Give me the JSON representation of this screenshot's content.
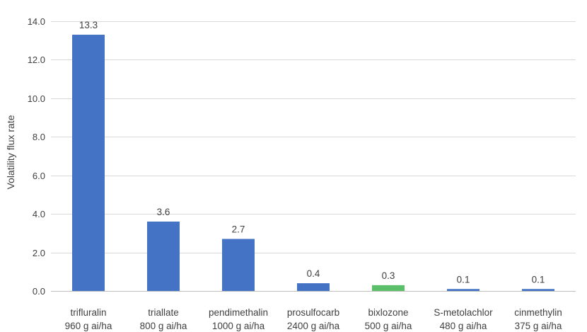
{
  "chart_data": {
    "type": "bar",
    "title": "",
    "xlabel": "",
    "ylabel": "Volatility flux rate",
    "ylim": [
      0,
      14
    ],
    "yticks": [
      "0.0",
      "2.0",
      "4.0",
      "6.0",
      "8.0",
      "10.0",
      "12.0",
      "14.0"
    ],
    "grid": true,
    "categories": [
      {
        "name": "trifluralin",
        "rate": "960 g ai/ha"
      },
      {
        "name": "triallate",
        "rate": "800 g ai/ha"
      },
      {
        "name": "pendimethalin",
        "rate": "1000 g ai/ha"
      },
      {
        "name": "prosulfocarb",
        "rate": "2400 g ai/ha"
      },
      {
        "name": "bixlozone",
        "rate": "500 g ai/ha"
      },
      {
        "name": "S-metolachlor",
        "rate": "480 g ai/ha"
      },
      {
        "name": "cinmethylin",
        "rate": "375 g ai/ha"
      }
    ],
    "values": [
      13.3,
      3.6,
      2.7,
      0.4,
      0.3,
      0.1,
      0.1
    ],
    "data_labels": [
      "13.3",
      "3.6",
      "2.7",
      "0.4",
      "0.3",
      "0.1",
      "0.1"
    ],
    "colors": {
      "default": "#4472c4",
      "highlight": "#5bbf6a",
      "highlight_index": 4
    }
  }
}
